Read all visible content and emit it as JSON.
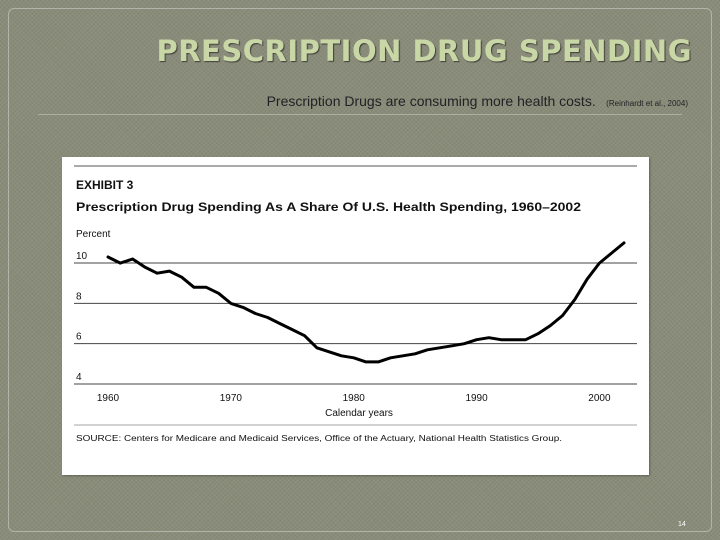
{
  "slide": {
    "title": "PRESCRIPTION DRUG SPENDING",
    "subtitle": "Prescription Drugs are consuming more health costs.",
    "citation": "(Reinhardt et al., 2004)",
    "slide_number": "14"
  },
  "colors": {
    "background": "#8a8c7a",
    "title": "#c9d6a6",
    "line": "#000000"
  },
  "chart_data": {
    "type": "line",
    "exhibit_label": "EXHIBIT 3",
    "title": "Prescription Drug Spending As A Share Of U.S. Health Spending, 1960–2002",
    "ylabel": "Percent",
    "xlabel": "Calendar years",
    "source": "SOURCE: Centers for Medicare and Medicaid Services, Office of the Actuary, National Health Statistics Group.",
    "xlim": [
      1960,
      2002
    ],
    "ylim": [
      4,
      10
    ],
    "yticks": [
      10,
      8,
      6,
      4
    ],
    "xticks": [
      1960,
      1970,
      1980,
      1990,
      2000
    ],
    "grid": "horizontal",
    "x": [
      1960,
      1961,
      1962,
      1963,
      1964,
      1965,
      1966,
      1967,
      1968,
      1969,
      1970,
      1971,
      1972,
      1973,
      1974,
      1975,
      1976,
      1977,
      1978,
      1979,
      1980,
      1981,
      1982,
      1983,
      1984,
      1985,
      1986,
      1987,
      1988,
      1989,
      1990,
      1991,
      1992,
      1993,
      1994,
      1995,
      1996,
      1997,
      1998,
      1999,
      2000,
      2001,
      2002
    ],
    "series": [
      {
        "values": [
          9.9,
          9.6,
          9.8,
          9.4,
          9.1,
          9.2,
          8.9,
          8.4,
          8.4,
          8.1,
          7.6,
          7.4,
          7.1,
          6.9,
          6.6,
          6.3,
          6.0,
          5.4,
          5.2,
          5.0,
          4.9,
          4.7,
          4.7,
          4.9,
          5.0,
          5.1,
          5.3,
          5.4,
          5.5,
          5.6,
          5.8,
          5.9,
          5.8,
          5.8,
          5.8,
          6.1,
          6.5,
          7.0,
          7.8,
          8.8,
          9.6,
          10.1,
          10.6
        ]
      }
    ]
  }
}
